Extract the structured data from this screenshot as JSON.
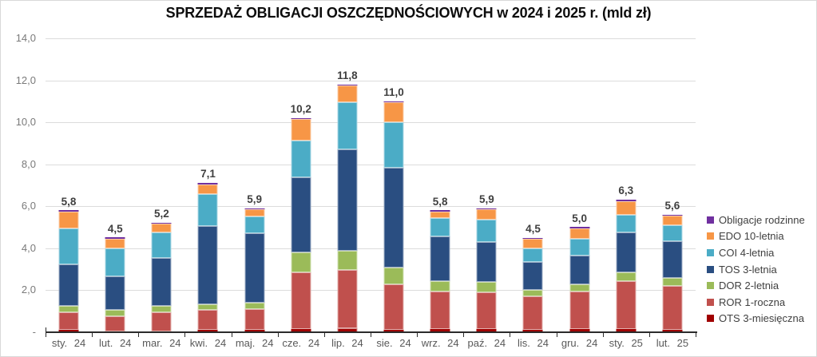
{
  "page": {
    "background": "#FFFFFF",
    "border_color": "#D9D9D9"
  },
  "chart_data": {
    "type": "bar",
    "stacked": true,
    "title": "SPRZEDAŻ OBLIGACJI OSZCZĘDNOŚCIOWYCH w 2024 i 2025 r. (mld zł)",
    "unit": "mld zł",
    "grid": true,
    "legend_position": "right",
    "categories": [
      "sty. 24",
      "lut. 24",
      "mar. 24",
      "kwi. 24",
      "maj. 24",
      "cze. 24",
      "lip. 24",
      "sie. 24",
      "wrz. 24",
      "paź. 24",
      "lis. 24",
      "gru. 24",
      "sty. 25",
      "lut. 25"
    ],
    "total_labels": [
      "5,8",
      "4,5",
      "5,2",
      "7,1",
      "5,9",
      "10,2",
      "11,8",
      "11,0",
      "5,8",
      "5,9",
      "4,5",
      "5,0",
      "6,3",
      "5,6"
    ],
    "totals": [
      5.8,
      4.5,
      5.2,
      7.1,
      5.9,
      10.2,
      11.8,
      11.0,
      5.8,
      5.9,
      4.5,
      5.0,
      6.3,
      5.6
    ],
    "series": [
      {
        "name": "OTS 3-miesięczna",
        "color": "#A00000",
        "values": [
          0.1,
          0.05,
          0.05,
          0.1,
          0.1,
          0.15,
          0.2,
          0.1,
          0.15,
          0.15,
          0.1,
          0.15,
          0.15,
          0.1
        ]
      },
      {
        "name": "ROR 1-roczna",
        "color": "#C0504D",
        "values": [
          0.85,
          0.7,
          0.9,
          0.95,
          1.0,
          2.7,
          2.75,
          2.2,
          1.8,
          1.75,
          1.6,
          1.8,
          2.3,
          2.1
        ]
      },
      {
        "name": "DOR 2-letnia",
        "color": "#9BBB59",
        "values": [
          0.3,
          0.3,
          0.3,
          0.3,
          0.3,
          0.95,
          0.95,
          0.8,
          0.5,
          0.5,
          0.3,
          0.35,
          0.4,
          0.4
        ]
      },
      {
        "name": "TOS 3-letnia",
        "color": "#2A4E81",
        "values": [
          2.0,
          1.6,
          2.3,
          3.7,
          3.3,
          3.6,
          4.8,
          4.75,
          2.1,
          1.9,
          1.35,
          1.35,
          1.9,
          1.75
        ]
      },
      {
        "name": "COI 4-letnia",
        "color": "#4BACC6",
        "values": [
          1.7,
          1.35,
          1.2,
          1.55,
          0.8,
          1.75,
          2.25,
          2.15,
          0.9,
          1.05,
          0.65,
          0.8,
          0.85,
          0.75
        ]
      },
      {
        "name": "EDO 10-letnia",
        "color": "#F79646",
        "values": [
          0.8,
          0.45,
          0.4,
          0.45,
          0.35,
          1.0,
          0.8,
          0.95,
          0.3,
          0.5,
          0.45,
          0.5,
          0.65,
          0.45
        ]
      },
      {
        "name": "Obligacje rodzinne",
        "color": "#7030A0",
        "values": [
          0.05,
          0.05,
          0.05,
          0.05,
          0.05,
          0.05,
          0.05,
          0.05,
          0.05,
          0.05,
          0.05,
          0.05,
          0.05,
          0.05
        ]
      }
    ],
    "legend_order_top_down": [
      "Obligacje rodzinne",
      "EDO 10-letnia",
      "COI 4-letnia",
      "TOS 3-letnia",
      "DOR 2-letnia",
      "ROR 1-roczna",
      "OTS 3-miesięczna"
    ],
    "y_axis": {
      "min": 0,
      "max": 14,
      "step": 2,
      "tick_labels_top_down": [
        "14,0",
        "12,0",
        "10,0",
        "8,0",
        "6,0",
        "4,0",
        "2,0"
      ],
      "zero_label": "-"
    }
  }
}
